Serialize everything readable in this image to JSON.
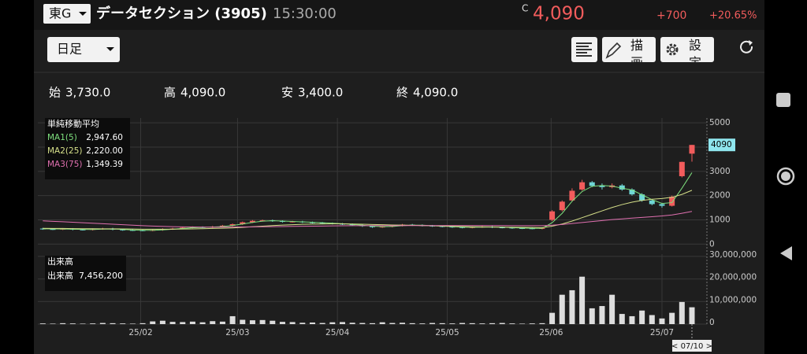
{
  "header": {
    "market": "東G",
    "name": "データセクション (3905)",
    "time": "15:30:00",
    "c_label": "C",
    "price": "4,090",
    "change": "+700",
    "change_pct": "+20.65%"
  },
  "toolbar": {
    "period": "日足",
    "draw": "描画",
    "settings": "設定"
  },
  "ohlc": [
    {
      "label": "始",
      "value": "3,730.0"
    },
    {
      "label": "高",
      "value": "4,090.0"
    },
    {
      "label": "安",
      "value": "3,400.0"
    },
    {
      "label": "終",
      "value": "4,090.0"
    }
  ],
  "cursor_label": "< 07/10 >",
  "chart_data": [
    {
      "type": "candlestick",
      "title": "単純移動平均",
      "up_color": "#f25c5c",
      "down_color": "#6fd6d6",
      "xlim": [
        -0.5,
        66.5
      ],
      "ylim": [
        -250,
        5200
      ],
      "yticks": [
        0,
        1000,
        2000,
        3000,
        4000,
        5000
      ],
      "xticks": [
        {
          "value": 9.8,
          "label": "25/02"
        },
        {
          "value": 19.5,
          "label": "25/03"
        },
        {
          "value": 29.5,
          "label": "25/04"
        },
        {
          "value": 40.5,
          "label": "25/05"
        },
        {
          "value": 50.9,
          "label": "25/06"
        },
        {
          "value": 62,
          "label": "25/07"
        }
      ],
      "open": [
        640,
        620,
        610,
        630,
        600,
        590,
        620,
        640,
        600,
        580,
        570,
        560,
        580,
        620,
        640,
        680,
        700,
        690,
        720,
        760,
        820,
        900,
        960,
        980,
        950,
        920,
        930,
        900,
        880,
        860,
        840,
        820,
        780,
        740,
        700,
        720,
        760,
        800,
        780,
        760,
        740,
        720,
        700,
        680,
        700,
        720,
        690,
        680,
        660,
        650,
        640,
        1000,
        1400,
        1800,
        2250,
        2550,
        2400,
        2350,
        2420,
        2250,
        2050,
        1800,
        1650,
        1580,
        2800,
        3730
      ],
      "high": [
        670,
        650,
        660,
        660,
        630,
        650,
        670,
        670,
        630,
        610,
        600,
        610,
        650,
        670,
        710,
        730,
        730,
        750,
        790,
        850,
        930,
        990,
        1010,
        1010,
        980,
        960,
        960,
        930,
        910,
        890,
        870,
        850,
        810,
        770,
        750,
        790,
        830,
        830,
        810,
        790,
        770,
        750,
        730,
        730,
        750,
        750,
        720,
        710,
        690,
        680,
        690,
        1400,
        1800,
        2300,
        2650,
        2600,
        2500,
        2500,
        2480,
        2300,
        2100,
        1850,
        1700,
        2000,
        3400,
        4090
      ],
      "low": [
        590,
        580,
        580,
        570,
        560,
        560,
        590,
        570,
        550,
        540,
        530,
        530,
        550,
        590,
        610,
        650,
        660,
        660,
        690,
        730,
        790,
        870,
        930,
        920,
        890,
        890,
        870,
        850,
        830,
        810,
        790,
        750,
        710,
        670,
        670,
        690,
        730,
        750,
        730,
        710,
        690,
        670,
        650,
        650,
        670,
        660,
        650,
        630,
        620,
        610,
        610,
        950,
        1350,
        1750,
        2200,
        2350,
        2250,
        2300,
        2200,
        2000,
        1750,
        1600,
        1500,
        1550,
        2750,
        3400
      ],
      "close": [
        620,
        610,
        630,
        600,
        590,
        620,
        640,
        600,
        580,
        570,
        560,
        580,
        620,
        640,
        680,
        700,
        690,
        720,
        760,
        820,
        900,
        960,
        980,
        950,
        920,
        930,
        900,
        880,
        860,
        840,
        820,
        780,
        740,
        700,
        720,
        760,
        800,
        780,
        760,
        740,
        720,
        700,
        680,
        700,
        720,
        690,
        680,
        660,
        650,
        640,
        660,
        1350,
        1750,
        2200,
        2550,
        2400,
        2350,
        2420,
        2250,
        2050,
        1800,
        1650,
        1580,
        1950,
        3390,
        4090
      ],
      "series": [
        {
          "name": "MA1(5)",
          "color": "#7ee07e",
          "value_label": "2,947.60",
          "values": [
            630,
            625,
            620,
            613,
            607,
            603,
            617,
            620,
            607,
            583,
            570,
            570,
            587,
            613,
            647,
            673,
            690,
            703,
            723,
            767,
            827,
            893,
            947,
            963,
            950,
            933,
            917,
            903,
            880,
            860,
            840,
            813,
            780,
            740,
            720,
            727,
            760,
            780,
            780,
            760,
            740,
            720,
            700,
            693,
            700,
            703,
            697,
            677,
            663,
            650,
            650,
            883,
            1267,
            1767,
            2167,
            2383,
            2417,
            2390,
            2307,
            2233,
            2033,
            1833,
            1677,
            1710,
            2307,
            2948
          ]
        },
        {
          "name": "MA2(25)",
          "color": "#d6e08a",
          "value_label": "2,220.00",
          "values": [
            650,
            648,
            645,
            640,
            636,
            632,
            630,
            628,
            625,
            620,
            615,
            612,
            612,
            615,
            620,
            627,
            635,
            645,
            655,
            668,
            690,
            715,
            740,
            765,
            785,
            800,
            815,
            825,
            830,
            835,
            835,
            830,
            820,
            810,
            800,
            790,
            785,
            775,
            765,
            755,
            745,
            735,
            725,
            715,
            710,
            705,
            700,
            695,
            690,
            685,
            680,
            740,
            830,
            950,
            1090,
            1230,
            1370,
            1510,
            1630,
            1730,
            1800,
            1850,
            1880,
            1930,
            2050,
            2220
          ]
        },
        {
          "name": "MA3(75)",
          "color": "#e070b0",
          "value_label": "1,349.39",
          "values": [
            960,
            940,
            920,
            900,
            880,
            860,
            840,
            820,
            800,
            780,
            760,
            745,
            730,
            720,
            712,
            706,
            702,
            700,
            700,
            702,
            705,
            710,
            715,
            720,
            725,
            730,
            735,
            740,
            745,
            750,
            755,
            758,
            760,
            762,
            763,
            764,
            765,
            765,
            765,
            765,
            765,
            765,
            765,
            765,
            764,
            763,
            762,
            761,
            760,
            760,
            760,
            780,
            810,
            850,
            890,
            930,
            970,
            1010,
            1040,
            1070,
            1100,
            1130,
            1160,
            1200,
            1270,
            1349
          ]
        }
      ]
    },
    {
      "type": "bar",
      "title": "出来高",
      "name": "出来高",
      "value_label": "7,456,200",
      "color": "#dddddd",
      "ylim": [
        0,
        31000000
      ],
      "yticks": [
        {
          "value": 0,
          "label": "0"
        },
        {
          "value": 10000000,
          "label": "10,000,000"
        },
        {
          "value": 20000000,
          "label": "20,000,000"
        },
        {
          "value": 30000000,
          "label": "30,000,000"
        }
      ],
      "values": [
        300000,
        200000,
        400000,
        300000,
        200000,
        300000,
        500000,
        400000,
        300000,
        200000,
        400000,
        1200000,
        1500000,
        1000000,
        900000,
        1100000,
        800000,
        1300000,
        1100000,
        3500000,
        1900000,
        1700000,
        1800000,
        1500000,
        1000000,
        900000,
        600000,
        700000,
        500000,
        800000,
        900000,
        600000,
        500000,
        400000,
        800000,
        500000,
        600000,
        400000,
        300000,
        500000,
        400000,
        300000,
        500000,
        400000,
        300000,
        400000,
        500000,
        300000,
        200000,
        300000,
        400000,
        5000000,
        13000000,
        15000000,
        21000000,
        7000000,
        8000000,
        13000000,
        4500000,
        3500000,
        6000000,
        4000000,
        2500000,
        5000000,
        9800000,
        7456200
      ]
    }
  ]
}
